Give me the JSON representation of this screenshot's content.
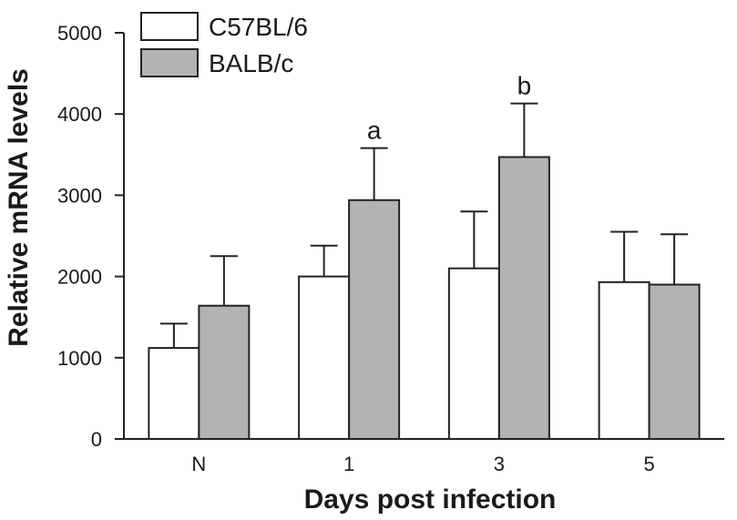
{
  "chart_data": {
    "type": "bar",
    "title": "",
    "xlabel": "Days post infection",
    "ylabel": "Relative mRNA levels",
    "categories": [
      "N",
      "1",
      "3",
      "5"
    ],
    "ylim": [
      0,
      5000
    ],
    "yticks": [
      0,
      1000,
      2000,
      3000,
      4000,
      5000
    ],
    "grid": false,
    "legend_position": "top-left",
    "series": [
      {
        "name": "C57BL/6",
        "color": "#ffffff",
        "values": [
          1120,
          2000,
          2100,
          1930
        ],
        "errors": [
          300,
          380,
          700,
          620
        ]
      },
      {
        "name": "BALB/c",
        "color": "#b3b3b3",
        "values": [
          1640,
          2940,
          3470,
          1900
        ],
        "errors": [
          610,
          640,
          660,
          620
        ]
      }
    ],
    "annotations": [
      {
        "category": "1",
        "series": "BALB/c",
        "text": "a"
      },
      {
        "category": "3",
        "series": "BALB/c",
        "text": "b"
      }
    ]
  }
}
